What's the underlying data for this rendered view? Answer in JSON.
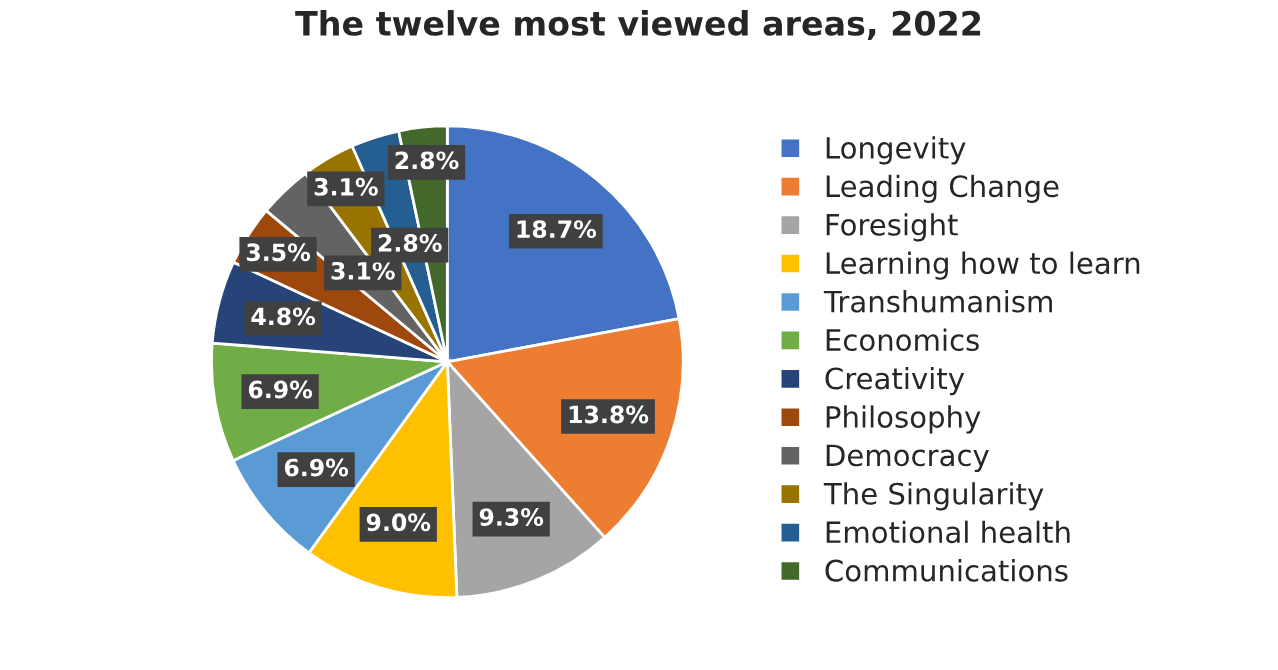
{
  "chart_data": {
    "type": "pie",
    "title": "The twelve most viewed areas, 2022",
    "categories": [
      "Longevity",
      "Leading Change",
      "Foresight",
      "Learning how to learn",
      "Transhumanism",
      "Economics",
      "Creativity",
      "Philosophy",
      "Democracy",
      "The Singularity",
      "Emotional health",
      "Communications"
    ],
    "values": [
      18.7,
      13.8,
      9.3,
      9.0,
      6.9,
      6.9,
      4.8,
      3.5,
      3.1,
      3.1,
      2.8,
      2.8
    ],
    "value_labels": [
      "18.7%",
      "13.8%",
      "9.3%",
      "9.0%",
      "6.9%",
      "6.9%",
      "4.8%",
      "3.5%",
      "3.1%",
      "3.1%",
      "2.8%",
      "2.8%"
    ],
    "colors": [
      "#4472c4",
      "#ed7d31",
      "#a5a5a5",
      "#ffc000",
      "#5b9bd5",
      "#70ad47",
      "#264478",
      "#9e480e",
      "#636363",
      "#997300",
      "#255e91",
      "#43682b"
    ],
    "legend": "right"
  }
}
